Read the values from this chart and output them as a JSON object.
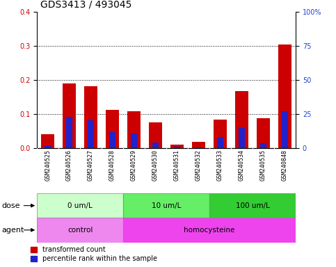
{
  "title": "GDS3413 / 493045",
  "categories": [
    "GSM240525",
    "GSM240526",
    "GSM240527",
    "GSM240528",
    "GSM240529",
    "GSM240530",
    "GSM240531",
    "GSM240532",
    "GSM240533",
    "GSM240534",
    "GSM240535",
    "GSM240848"
  ],
  "red_values": [
    0.042,
    0.19,
    0.182,
    0.112,
    0.108,
    0.075,
    0.01,
    0.018,
    0.085,
    0.168,
    0.088,
    0.305
  ],
  "blue_values": [
    0.008,
    0.092,
    0.082,
    0.048,
    0.044,
    0.016,
    0.005,
    0.003,
    0.032,
    0.06,
    0.014,
    0.108
  ],
  "red_color": "#cc0000",
  "blue_color": "#2222cc",
  "left_ylim": [
    0,
    0.4
  ],
  "right_ylim": [
    0,
    100
  ],
  "left_yticks": [
    0.0,
    0.1,
    0.2,
    0.3,
    0.4
  ],
  "right_yticks": [
    0,
    25,
    50,
    75,
    100
  ],
  "right_yticklabels": [
    "0",
    "25",
    "50",
    "75",
    "100%"
  ],
  "dose_groups": [
    {
      "label": "0 um/L",
      "start": 0,
      "end": 4,
      "color": "#ccffcc"
    },
    {
      "label": "10 um/L",
      "start": 4,
      "end": 8,
      "color": "#66ee66"
    },
    {
      "label": "100 um/L",
      "start": 8,
      "end": 12,
      "color": "#33cc33"
    }
  ],
  "agent_groups": [
    {
      "label": "control",
      "start": 0,
      "end": 4,
      "color": "#ee88ee"
    },
    {
      "label": "homocysteine",
      "start": 4,
      "end": 12,
      "color": "#ee44ee"
    }
  ],
  "dose_label": "dose",
  "agent_label": "agent",
  "legend_red": "transformed count",
  "legend_blue": "percentile rank within the sample",
  "bar_width": 0.6,
  "tick_fontsize": 7,
  "title_fontsize": 10
}
